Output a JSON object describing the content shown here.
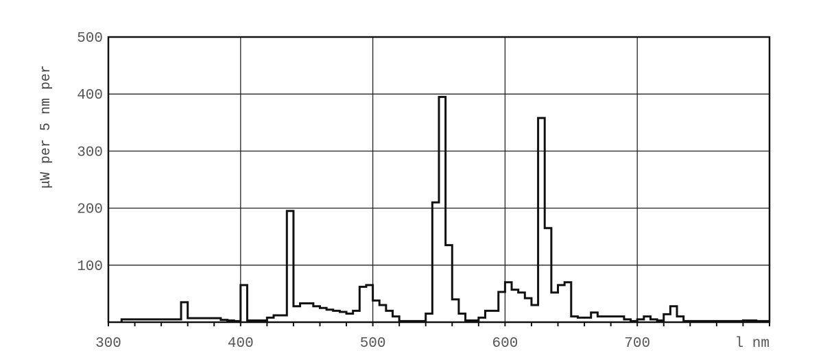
{
  "chart_data": {
    "type": "line",
    "style": "step",
    "title": "",
    "ylabel": "μW per 5 nm per",
    "xlabel_unit": "l nm",
    "xlim": [
      300,
      800
    ],
    "ylim": [
      0,
      500
    ],
    "x_ticks": [
      300,
      400,
      500,
      600,
      700
    ],
    "x_tick_labels": [
      "300",
      "400",
      "500",
      "600",
      "700"
    ],
    "y_ticks": [
      100,
      200,
      300,
      400,
      500
    ],
    "y_tick_labels": [
      "100",
      "200",
      "300",
      "400",
      "500"
    ],
    "grid": true,
    "bin_width_nm": 5,
    "series": [
      {
        "x": [
          310,
          315,
          320,
          325,
          330,
          335,
          340,
          345,
          350,
          355,
          360,
          365,
          370,
          375,
          380,
          385,
          390,
          395,
          400,
          405,
          410,
          415,
          420,
          425,
          430,
          435,
          440,
          445,
          450,
          455,
          460,
          465,
          470,
          475,
          480,
          485,
          490,
          495,
          500,
          505,
          510,
          515,
          520,
          525,
          530,
          535,
          540,
          545,
          550,
          555,
          560,
          565,
          570,
          575,
          580,
          585,
          590,
          595,
          600,
          605,
          610,
          615,
          620,
          625,
          630,
          635,
          640,
          645,
          650,
          655,
          660,
          665,
          670,
          675,
          680,
          685,
          690,
          695,
          700,
          705,
          710,
          715,
          720,
          725,
          730,
          735,
          740,
          745,
          750,
          755,
          760,
          765,
          770,
          775,
          780,
          785,
          790,
          795
        ],
        "values": [
          5,
          5,
          5,
          5,
          5,
          5,
          5,
          5,
          5,
          35,
          7,
          7,
          7,
          7,
          7,
          4,
          3,
          2,
          65,
          3,
          3,
          3,
          8,
          12,
          12,
          195,
          28,
          33,
          33,
          28,
          25,
          22,
          20,
          18,
          15,
          20,
          62,
          65,
          38,
          30,
          20,
          10,
          2,
          2,
          2,
          2,
          15,
          210,
          395,
          135,
          40,
          15,
          3,
          3,
          8,
          20,
          20,
          53,
          70,
          57,
          52,
          42,
          30,
          358,
          165,
          52,
          65,
          70,
          10,
          8,
          8,
          17,
          10,
          10,
          10,
          10,
          5,
          2,
          5,
          10,
          5,
          3,
          14,
          28,
          10,
          2,
          2,
          2,
          2,
          2,
          2,
          2,
          2,
          2,
          3,
          3,
          2,
          2
        ]
      }
    ]
  }
}
